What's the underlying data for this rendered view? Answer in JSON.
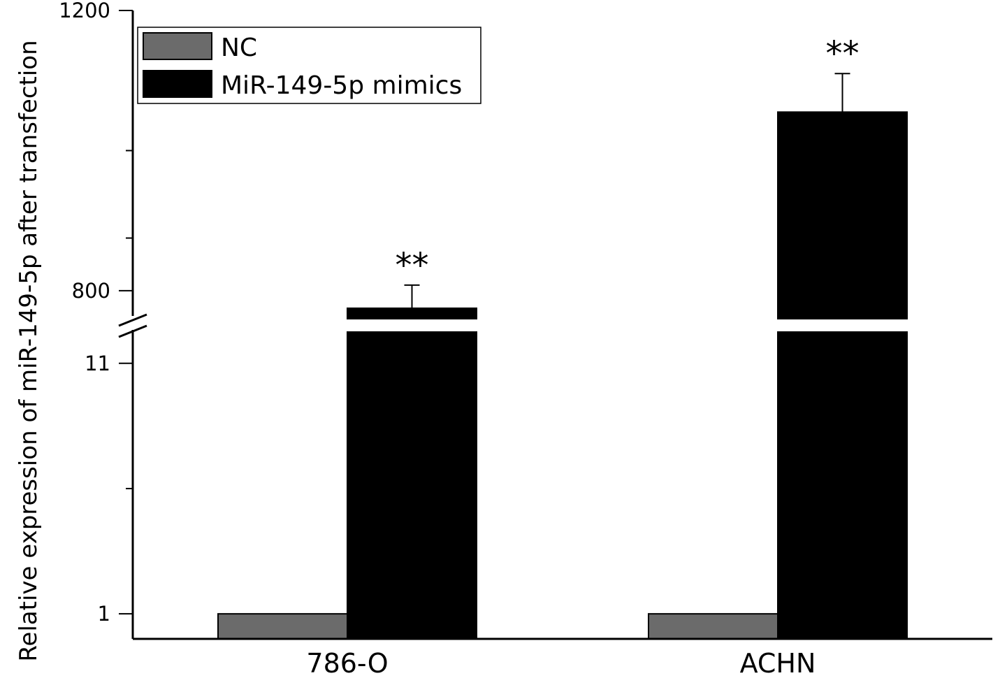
{
  "chart_data": {
    "type": "bar",
    "ylabel": "Relative expression of miR-149-5p after transfection",
    "categories": [
      "786-O",
      "ACHN"
    ],
    "series": [
      {
        "name": "NC",
        "color": "#6b6b6b",
        "values": [
          1,
          1
        ],
        "errors": [
          0,
          0
        ]
      },
      {
        "name": "MiR-149-5p mimics",
        "color": "#000000",
        "values": [
          775,
          1055
        ],
        "errors": [
          33,
          55
        ]
      }
    ],
    "y_axis": {
      "broken": true,
      "lower_segment": {
        "range": [
          0,
          12.5
        ],
        "major_ticks": [
          1,
          11
        ],
        "minor_ticks": [
          6,
          16
        ]
      },
      "upper_segment": {
        "range": [
          750,
          1200
        ],
        "major_ticks": [
          800,
          1200
        ],
        "minor_ticks": [
          1000
        ]
      }
    },
    "annotations": [
      {
        "category": "786-O",
        "series": "MiR-149-5p mimics",
        "text": "**"
      },
      {
        "category": "ACHN",
        "series": "MiR-149-5p mimics",
        "text": "**"
      }
    ],
    "legend_position": "top-left",
    "grid": false
  }
}
